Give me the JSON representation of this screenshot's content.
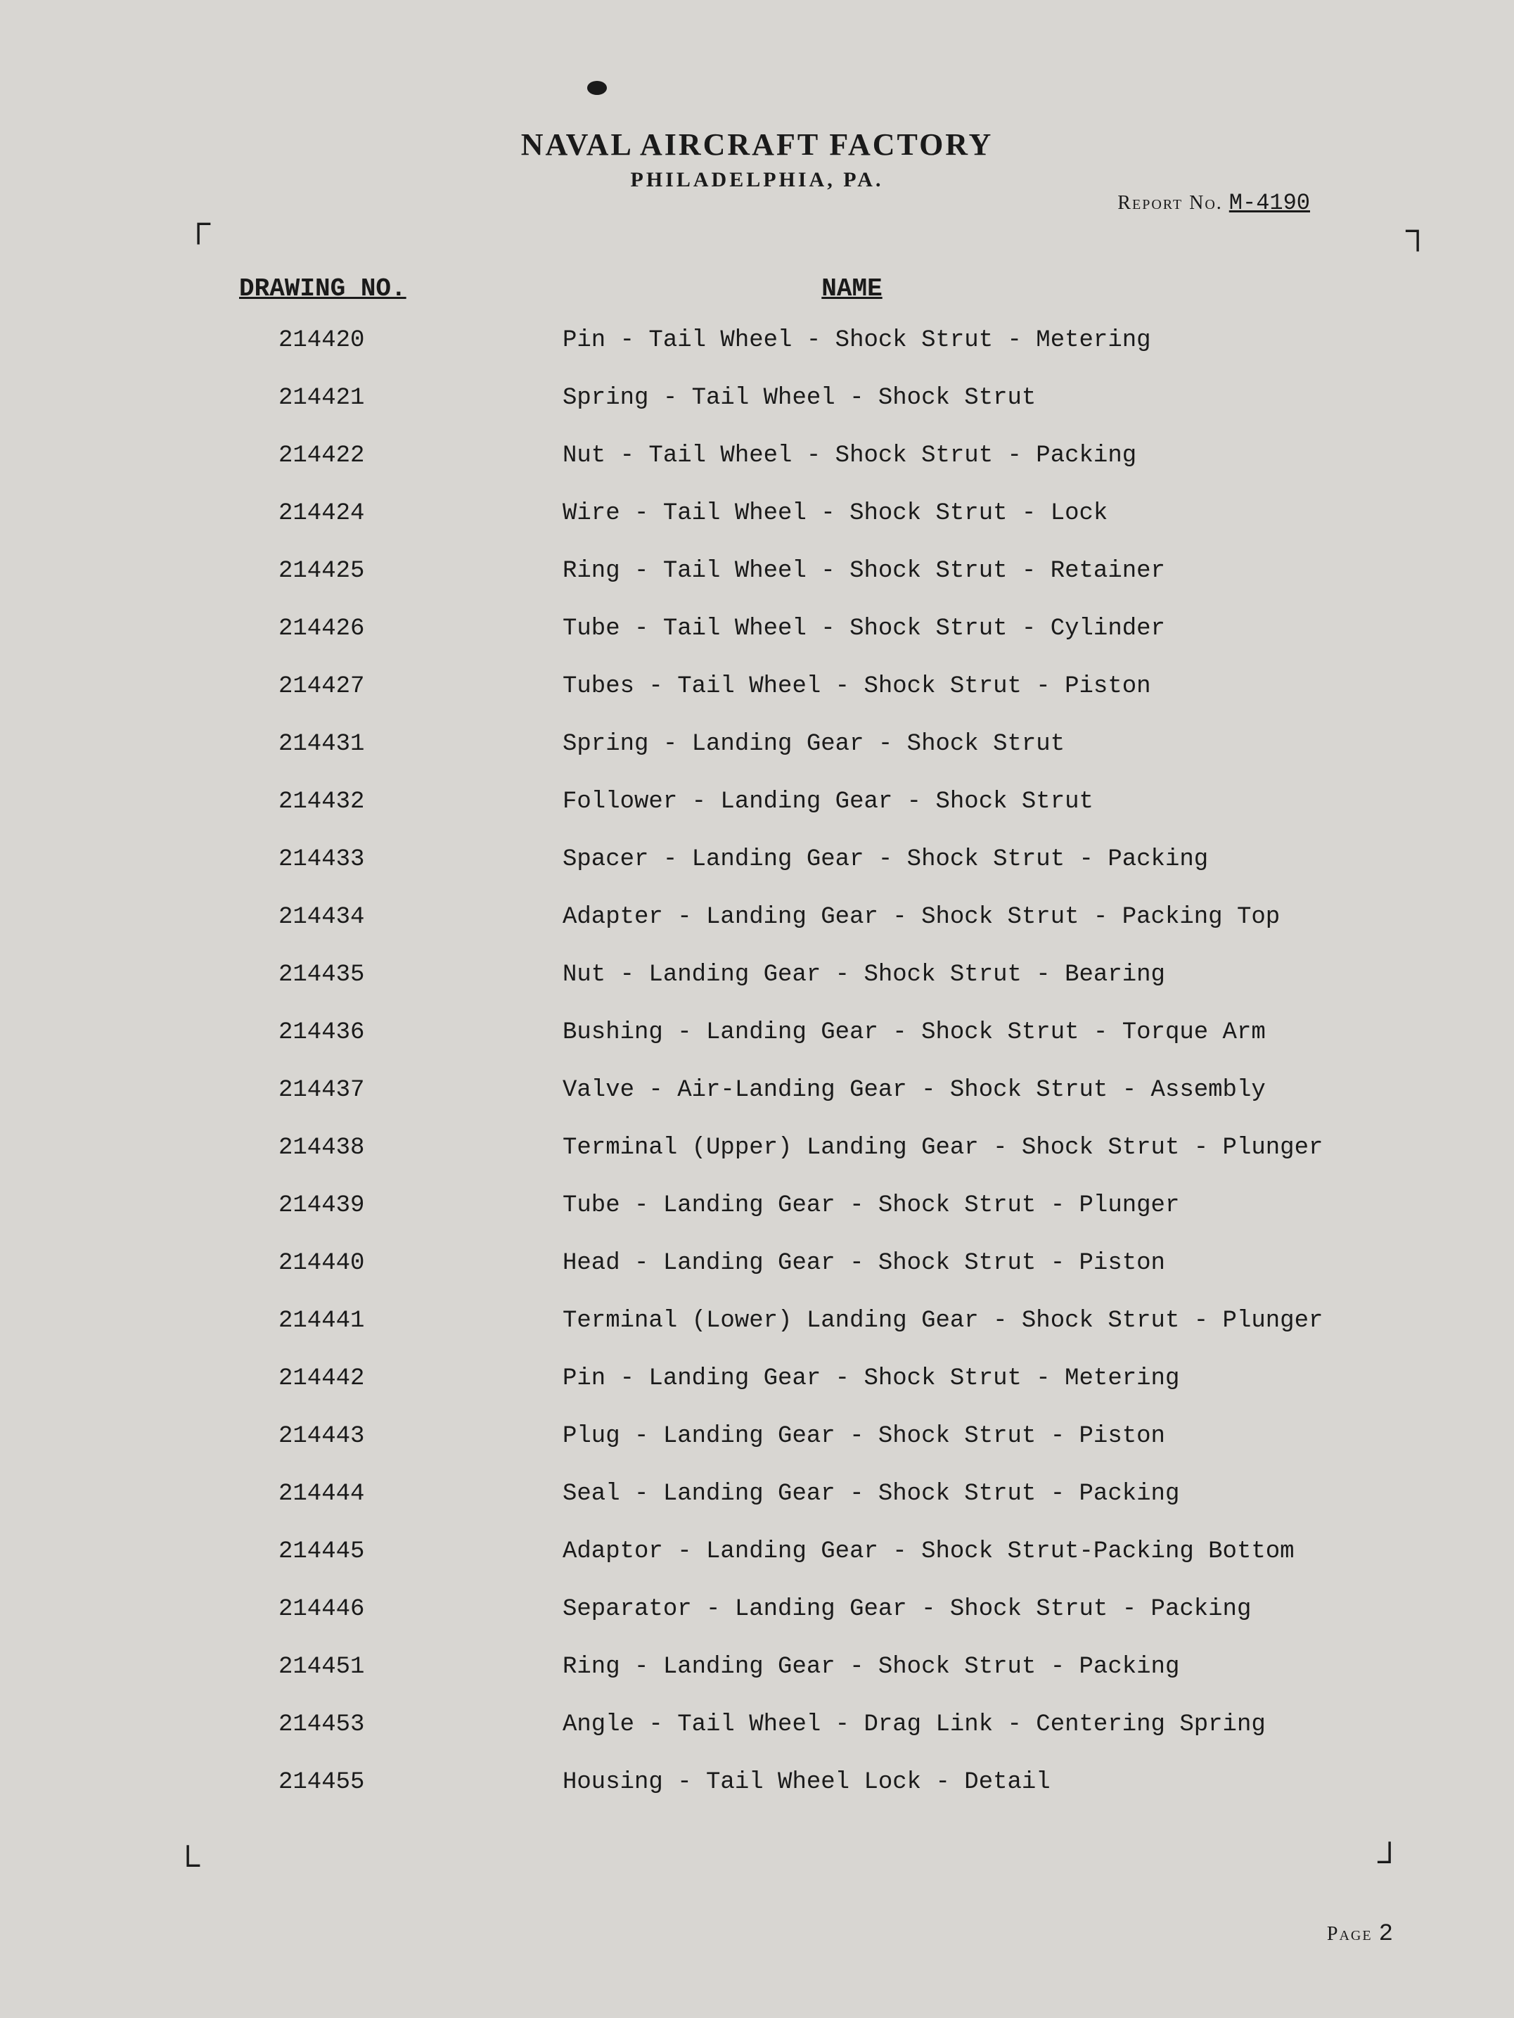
{
  "header": {
    "title": "NAVAL AIRCRAFT FACTORY",
    "subtitle": "PHILADELPHIA, PA."
  },
  "report": {
    "label": "Report No.",
    "value": "M-4190"
  },
  "columns": {
    "drawing": "DRAWING NO.",
    "name": "NAME"
  },
  "rows": [
    {
      "num": "214420",
      "name": "Pin - Tail Wheel - Shock Strut - Metering"
    },
    {
      "num": "214421",
      "name": "Spring - Tail Wheel - Shock Strut"
    },
    {
      "num": "214422",
      "name": "Nut - Tail Wheel - Shock Strut - Packing"
    },
    {
      "num": "214424",
      "name": "Wire - Tail Wheel - Shock Strut - Lock"
    },
    {
      "num": "214425",
      "name": "Ring - Tail Wheel - Shock Strut - Retainer"
    },
    {
      "num": "214426",
      "name": "Tube - Tail Wheel - Shock Strut - Cylinder"
    },
    {
      "num": "214427",
      "name": "Tubes - Tail Wheel - Shock Strut - Piston"
    },
    {
      "num": "214431",
      "name": "Spring - Landing Gear - Shock Strut"
    },
    {
      "num": "214432",
      "name": "Follower - Landing Gear - Shock Strut"
    },
    {
      "num": "214433",
      "name": "Spacer - Landing Gear - Shock Strut - Packing"
    },
    {
      "num": "214434",
      "name": "Adapter - Landing Gear - Shock Strut - Packing Top"
    },
    {
      "num": "214435",
      "name": "Nut - Landing Gear - Shock Strut - Bearing"
    },
    {
      "num": "214436",
      "name": "Bushing - Landing Gear - Shock Strut - Torque Arm"
    },
    {
      "num": "214437",
      "name": "Valve - Air-Landing Gear - Shock Strut - Assembly"
    },
    {
      "num": "214438",
      "name": "Terminal (Upper) Landing Gear - Shock Strut - Plunger"
    },
    {
      "num": "214439",
      "name": "Tube - Landing Gear - Shock Strut - Plunger"
    },
    {
      "num": "214440",
      "name": "Head - Landing Gear - Shock Strut - Piston"
    },
    {
      "num": "214441",
      "name": "Terminal (Lower) Landing Gear - Shock Strut - Plunger"
    },
    {
      "num": "214442",
      "name": "Pin - Landing Gear - Shock Strut - Metering"
    },
    {
      "num": "214443",
      "name": "Plug - Landing Gear - Shock Strut - Piston"
    },
    {
      "num": "214444",
      "name": "Seal - Landing Gear - Shock Strut - Packing"
    },
    {
      "num": "214445",
      "name": "Adaptor - Landing Gear - Shock Strut-Packing Bottom"
    },
    {
      "num": "214446",
      "name": "Separator - Landing Gear - Shock Strut - Packing"
    },
    {
      "num": "214451",
      "name": "Ring - Landing Gear - Shock Strut - Packing"
    },
    {
      "num": "214453",
      "name": "Angle - Tail Wheel - Drag Link - Centering Spring"
    },
    {
      "num": "214455",
      "name": "Housing - Tail Wheel Lock - Detail"
    }
  ],
  "page": {
    "label": "Page",
    "value": "2"
  },
  "colors": {
    "background": "#d8d6d2",
    "text": "#1a1a1a"
  },
  "crop_marks": {
    "tl": "┌",
    "tr": "┐",
    "bl": "└",
    "br": "┘"
  }
}
